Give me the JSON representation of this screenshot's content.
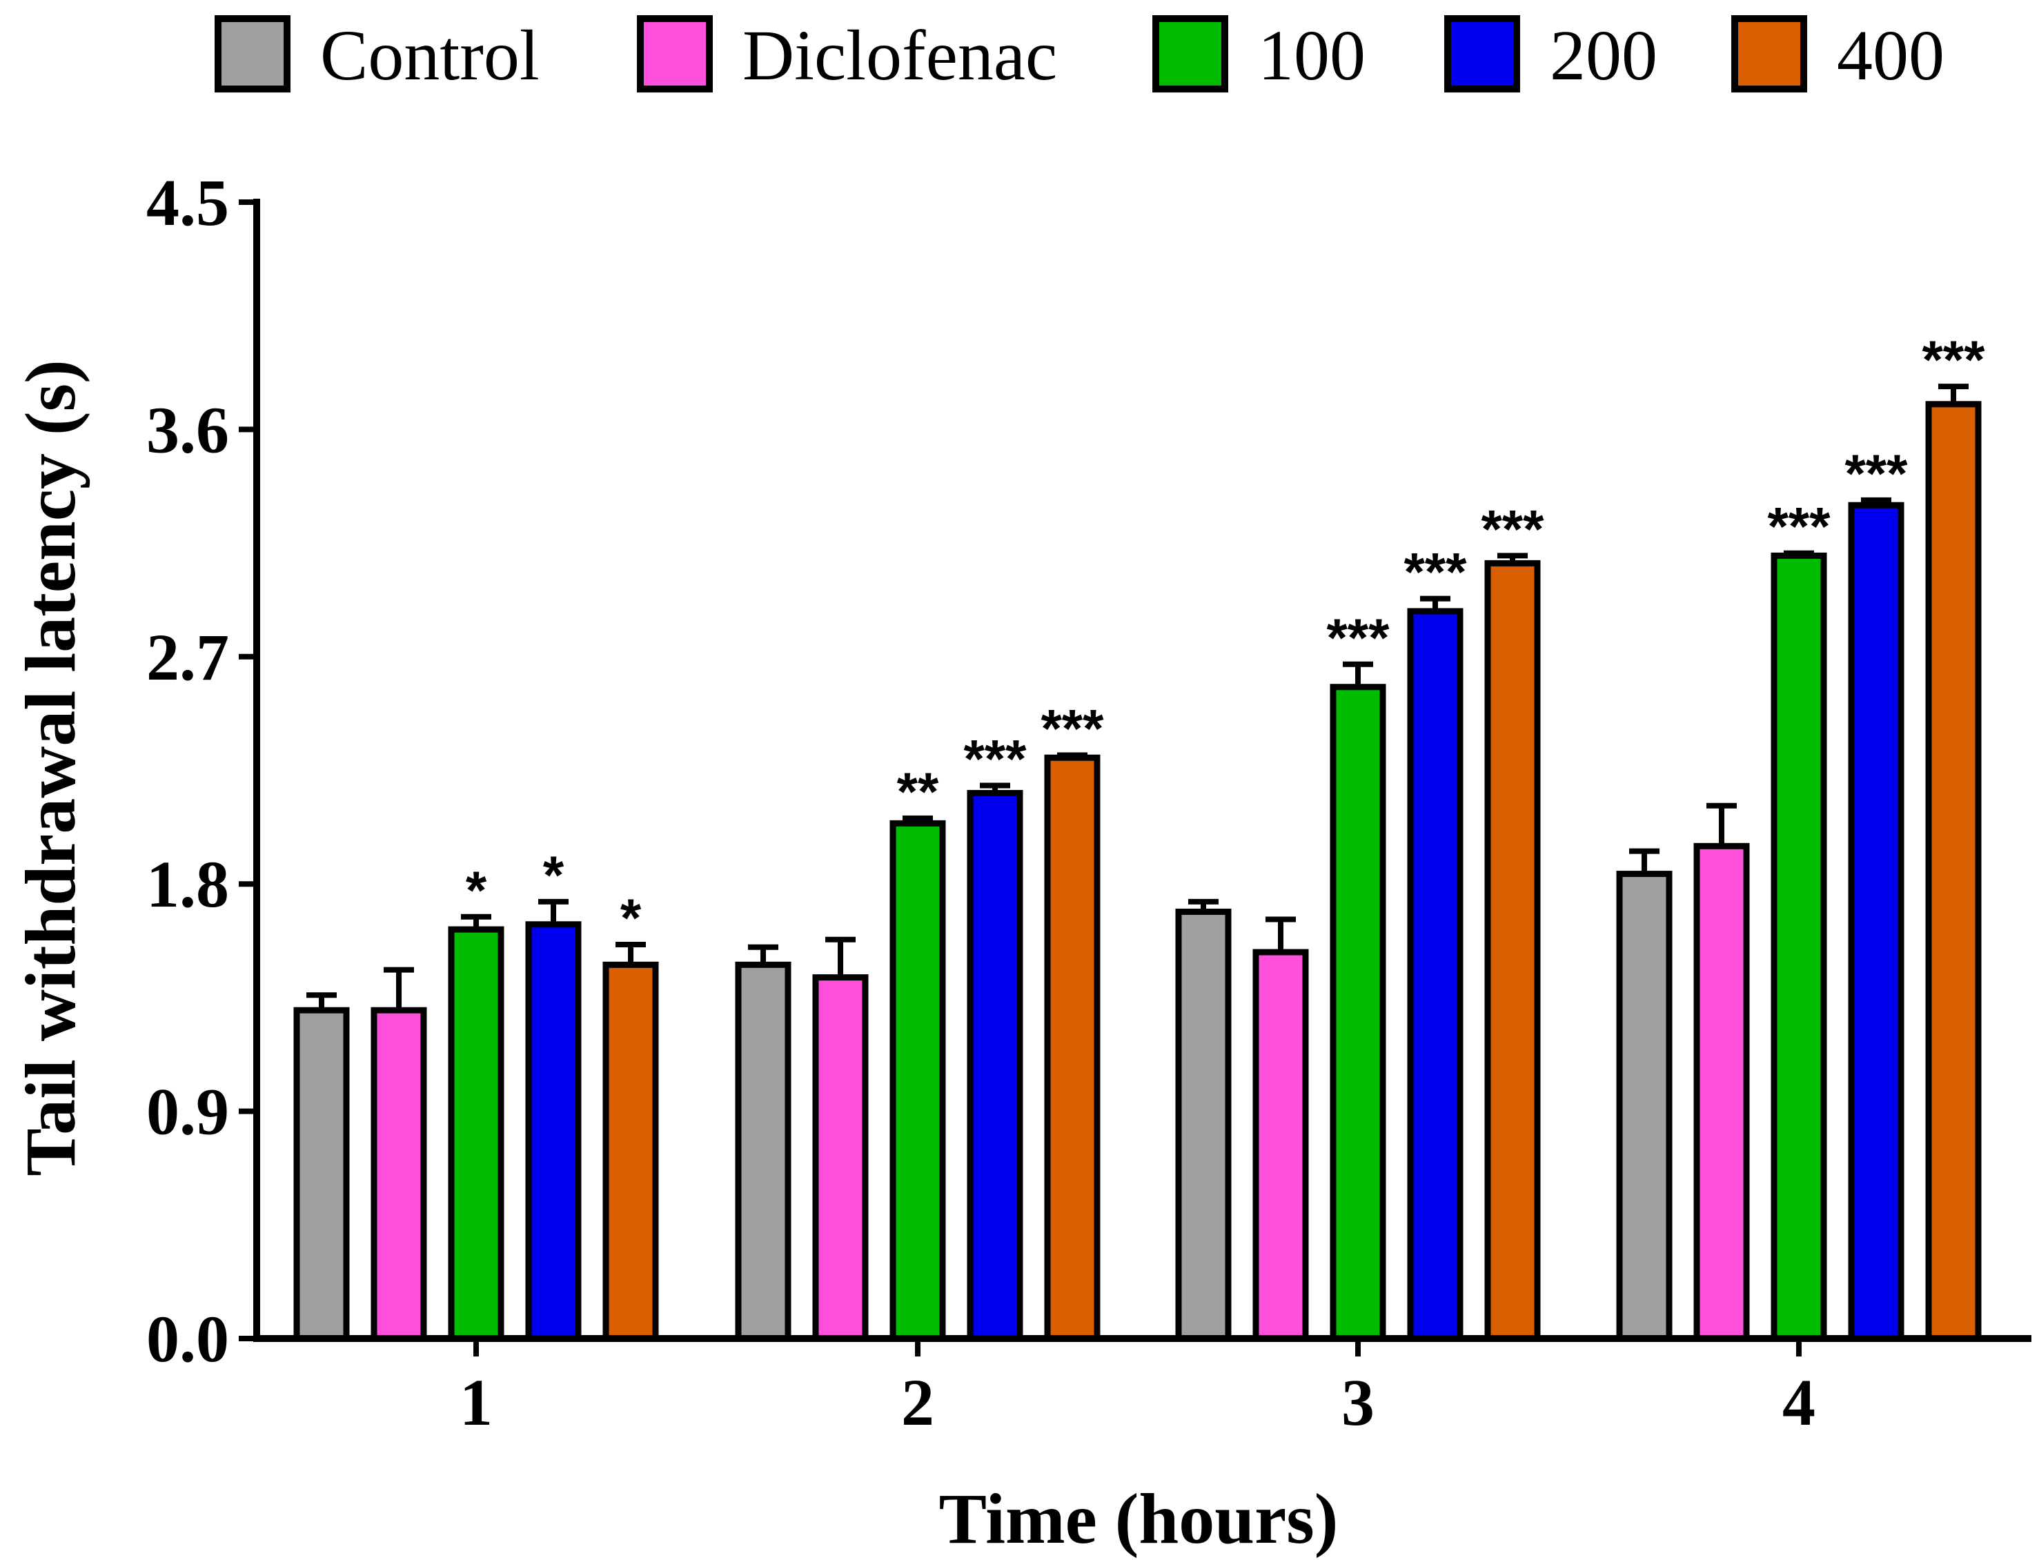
{
  "chart_data": {
    "type": "bar",
    "title": "",
    "xlabel": "Time (hours)",
    "ylabel": "Tail withdrawal latency (s)",
    "ylim": [
      0,
      4.5
    ],
    "yticks": [
      "0.0",
      "0.9",
      "1.8",
      "2.7",
      "3.6",
      "4.5"
    ],
    "categories": [
      "1",
      "2",
      "3",
      "4"
    ],
    "grid": false,
    "legend_position": "top",
    "series": [
      {
        "name": "Control",
        "color": "#a0a0a0",
        "values": [
          1.3,
          1.48,
          1.69,
          1.84
        ],
        "errors": [
          0.06,
          0.07,
          0.04,
          0.09
        ]
      },
      {
        "name": "Diclofenac",
        "color": "#ff4fdb",
        "values": [
          1.3,
          1.43,
          1.53,
          1.95
        ],
        "errors": [
          0.16,
          0.15,
          0.13,
          0.16
        ]
      },
      {
        "name": "100",
        "color": "#00bb00",
        "values": [
          1.62,
          2.04,
          2.58,
          3.1
        ],
        "errors": [
          0.05,
          0.02,
          0.09,
          0.01
        ]
      },
      {
        "name": "200",
        "color": "#0000ee",
        "values": [
          1.64,
          2.16,
          2.88,
          3.3
        ],
        "errors": [
          0.09,
          0.03,
          0.05,
          0.02
        ]
      },
      {
        "name": "400",
        "color": "#d95f00",
        "values": [
          1.48,
          2.3,
          3.07,
          3.7
        ],
        "errors": [
          0.08,
          0.01,
          0.03,
          0.07
        ]
      }
    ],
    "significance": [
      [
        "",
        "",
        "",
        ""
      ],
      [
        "",
        "",
        "",
        ""
      ],
      [
        "*",
        "**",
        "***",
        "***"
      ],
      [
        "*",
        "***",
        "***",
        "***"
      ],
      [
        "*",
        "***",
        "***",
        "***"
      ]
    ]
  }
}
